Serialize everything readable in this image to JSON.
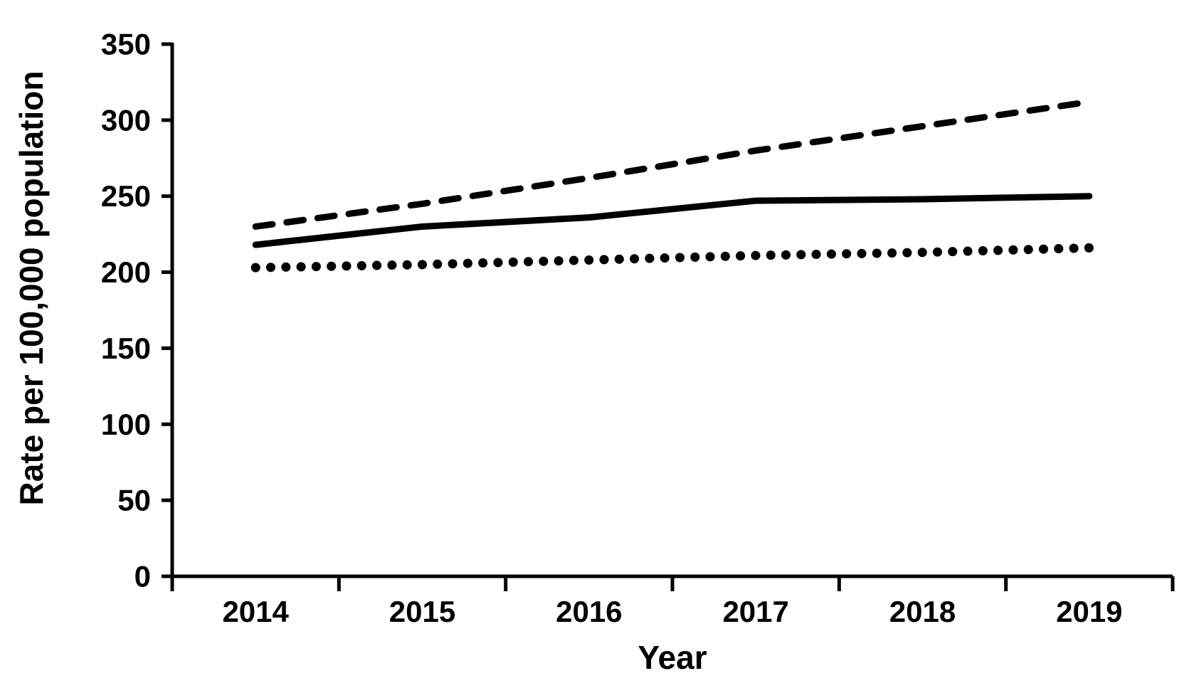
{
  "chart_data": {
    "type": "line",
    "title": "",
    "xlabel": "Year",
    "ylabel": "Rate per 100,000 population",
    "categories": [
      "2014",
      "2015",
      "2016",
      "2017",
      "2018",
      "2019"
    ],
    "series": [
      {
        "name": "dashed",
        "line_style": "dashed",
        "values": [
          230,
          245,
          262,
          280,
          296,
          312
        ]
      },
      {
        "name": "solid",
        "line_style": "solid",
        "values": [
          218,
          230,
          236,
          247,
          248,
          250
        ]
      },
      {
        "name": "dotted",
        "line_style": "dotted",
        "values": [
          203,
          205,
          208,
          211,
          213,
          216
        ]
      }
    ],
    "ylim": [
      0,
      350
    ],
    "ytick_step": 50,
    "yticks": [
      "0",
      "50",
      "100",
      "150",
      "200",
      "250",
      "300",
      "350"
    ],
    "grid": false,
    "legend": "none",
    "line_color": "#000000",
    "axis_color": "#000000",
    "background_color": "#ffffff"
  }
}
